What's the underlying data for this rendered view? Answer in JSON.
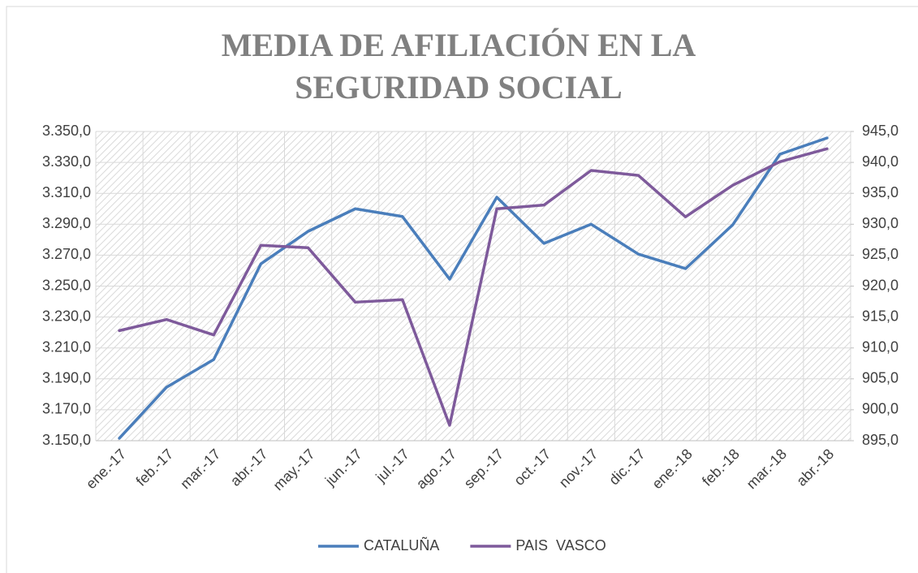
{
  "chart_data": {
    "type": "line",
    "title": "MEDIA DE AFILIACIÓN EN LA SEGURIDAD SOCIAL",
    "categories": [
      "ene.-17",
      "feb.-17",
      "mar.-17",
      "abr.-17",
      "may.-17",
      "jun.-17",
      "jul.-17",
      "ago.-17",
      "sep.-17",
      "oct.-17",
      "nov.-17",
      "dic.-17",
      "ene.-18",
      "feb.-18",
      "mar.-18",
      "abr.-18"
    ],
    "series": [
      {
        "name": "CATALUÑA",
        "color": "#4a7ebb",
        "values": [
          3151.6,
          3184.6,
          3202.5,
          3264.4,
          3285.4,
          3300,
          3295,
          3254.5,
          3307.5,
          3277.6,
          3290,
          3270.7,
          3261.3,
          3289.6,
          3335.3,
          3345.8
        ]
      },
      {
        "name": "PAIS  VASCO",
        "color": "#7e5a9b",
        "axis": "y2",
        "values": [
          912.8,
          914.6,
          912.1,
          926.6,
          926.2,
          917.4,
          917.8,
          897.5,
          932.5,
          933.1,
          938.7,
          937.9,
          931.2,
          936.3,
          940.1,
          942.2
        ]
      }
    ],
    "ylim": [
      3150,
      3350
    ],
    "yticks": [
      {
        "value": 3150,
        "label": "3.150,0"
      },
      {
        "value": 3170,
        "label": "3.170,0"
      },
      {
        "value": 3190,
        "label": "3.190,0"
      },
      {
        "value": 3210,
        "label": "3.210,0"
      },
      {
        "value": 3230,
        "label": "3.230,0"
      },
      {
        "value": 3250,
        "label": "3.250,0"
      },
      {
        "value": 3270,
        "label": "3.270,0"
      },
      {
        "value": 3290,
        "label": "3.290,0"
      },
      {
        "value": 3310,
        "label": "3.310,0"
      },
      {
        "value": 3330,
        "label": "3.330,0"
      },
      {
        "value": 3350,
        "label": "3.350,0"
      }
    ],
    "y2lim": [
      895,
      945
    ],
    "y2ticks": [
      {
        "value": 895,
        "label": "895,0"
      },
      {
        "value": 900,
        "label": "900,0"
      },
      {
        "value": 905,
        "label": "905,0"
      },
      {
        "value": 910,
        "label": "910,0"
      },
      {
        "value": 915,
        "label": "915,0"
      },
      {
        "value": 920,
        "label": "920,0"
      },
      {
        "value": 925,
        "label": "925,0"
      },
      {
        "value": 930,
        "label": "930,0"
      },
      {
        "value": 935,
        "label": "935,0"
      },
      {
        "value": 940,
        "label": "940,0"
      },
      {
        "value": 945,
        "label": "945,0"
      }
    ],
    "grid": true,
    "legend": "bottom"
  }
}
